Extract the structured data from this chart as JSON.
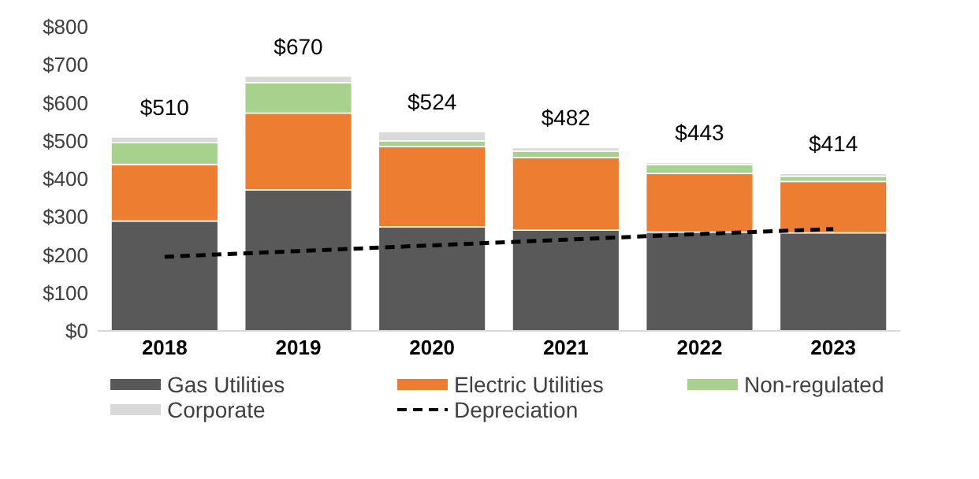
{
  "chart_data": {
    "type": "bar",
    "stacked": true,
    "categories": [
      "2018",
      "2019",
      "2020",
      "2021",
      "2022",
      "2023"
    ],
    "series": [
      {
        "name": "Gas Utilities",
        "color": "#595959",
        "values": [
          289,
          371,
          274,
          265,
          260,
          258
        ]
      },
      {
        "name": "Electric Utilities",
        "color": "#ed7d31",
        "values": [
          149,
          202,
          211,
          191,
          154,
          135
        ]
      },
      {
        "name": "Non-regulated",
        "color": "#a9d18e",
        "values": [
          57,
          80,
          15,
          17,
          24,
          14
        ]
      },
      {
        "name": "Corporate",
        "color": "#d9d9d9",
        "values": [
          15,
          17,
          24,
          9,
          5,
          7
        ]
      },
      {
        "name": "Depreciation",
        "type": "line",
        "color": "#000000",
        "line_style": "dashed",
        "values": [
          195,
          210,
          225,
          240,
          255,
          268
        ]
      }
    ],
    "totals": [
      "$510",
      "$670",
      "$524",
      "$482",
      "$443",
      "$414"
    ],
    "ylim": [
      0,
      800
    ],
    "yticks": [
      {
        "value": 0,
        "label": "$0"
      },
      {
        "value": 100,
        "label": "$100"
      },
      {
        "value": 200,
        "label": "$200"
      },
      {
        "value": 300,
        "label": "$300"
      },
      {
        "value": 400,
        "label": "$400"
      },
      {
        "value": 500,
        "label": "$500"
      },
      {
        "value": 600,
        "label": "$600"
      },
      {
        "value": 700,
        "label": "$700"
      },
      {
        "value": 800,
        "label": "$800"
      }
    ],
    "grid": false,
    "legend": "bottom"
  }
}
